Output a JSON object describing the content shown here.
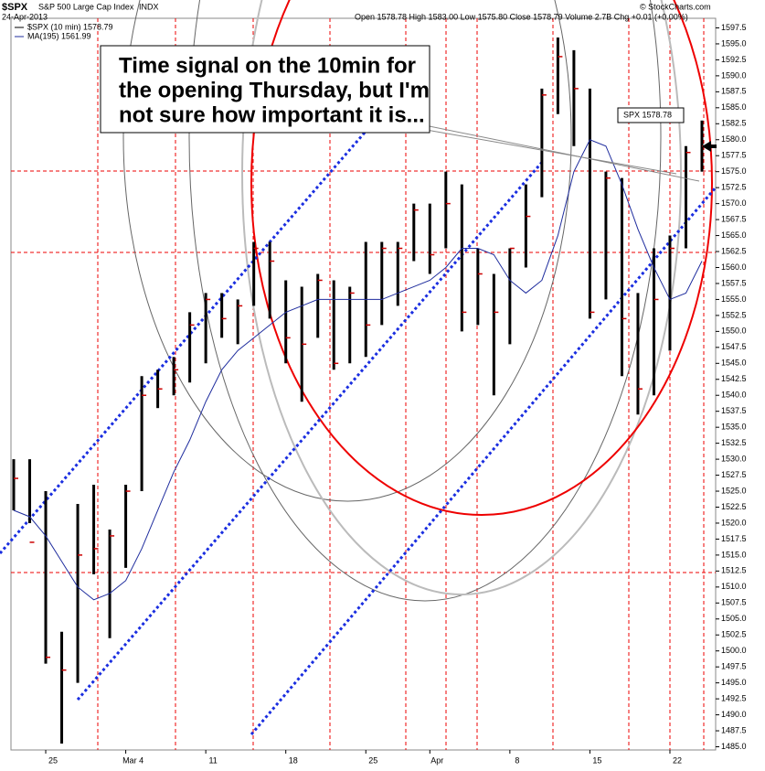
{
  "chart_data": {
    "type": "ohlc",
    "symbol": "$SPX",
    "title": "S&P 500 Large Cap Index",
    "exchange": "INDX",
    "date": "24-Apr-2013",
    "quote": "Open 1578.78 High 1583.00 Low 1575.80 Close 1578.79 Volume 2.7B Chg +0.01 (+0.00%)",
    "credit": "© StockCharts.com",
    "last_label": "SPX 1578.78",
    "annotation_lines": [
      "Time signal on the 10min for",
      "the opening Thursday, but I'm",
      "not sure how important it is..."
    ],
    "categories": [
      null,
      null,
      "25",
      null,
      null,
      null,
      null,
      "Mar 4",
      null,
      null,
      null,
      null,
      "11",
      null,
      null,
      null,
      null,
      "18",
      null,
      null,
      null,
      null,
      "25",
      null,
      null,
      null,
      "Apr",
      null,
      null,
      null,
      null,
      "8",
      null,
      null,
      null,
      null,
      "15",
      null,
      null,
      null,
      null,
      "22",
      null,
      null
    ],
    "series": [
      {
        "name": "$SPX (10 min) 1578.79",
        "color": "#000000",
        "high": [
          1530,
          1530,
          1525,
          1503,
          1523,
          1526,
          1519,
          1526,
          1543,
          1544,
          1546,
          1553,
          1556,
          1556,
          1555,
          1564,
          1564,
          1558,
          1557,
          1559,
          1558,
          1557,
          1564,
          1564,
          1564,
          1570,
          1570,
          1575,
          1573,
          1563,
          1559,
          1563,
          1573,
          1588,
          1596,
          1594,
          1588,
          1575,
          1574,
          1556,
          1563,
          1565,
          1579,
          1583
        ],
        "low": [
          1522,
          1520,
          1498,
          1485.5,
          1495,
          1512,
          1502,
          1513,
          1525,
          1538,
          1540,
          1542,
          1545,
          1549,
          1548,
          1554,
          1552,
          1545,
          1539,
          1549,
          1544,
          1545,
          1546,
          1551,
          1554,
          1561,
          1559,
          1563,
          1550,
          1551,
          1540,
          1548,
          1560,
          1571,
          1584,
          1579,
          1552,
          1555,
          1543,
          1537,
          1540,
          1547,
          1563,
          1575
        ],
        "values": [
          1527,
          1517,
          1499,
          1497,
          1515,
          1516,
          1518,
          1525,
          1540,
          1541,
          1544,
          1551,
          1555,
          1552,
          1554,
          1563,
          1561,
          1549,
          1548,
          1558,
          1545,
          1556,
          1551,
          1563,
          1563,
          1569,
          1562,
          1570,
          1553,
          1559,
          1553,
          1563,
          1568,
          1587,
          1593,
          1588,
          1553,
          1574,
          1552,
          1541,
          1555,
          1563,
          1578,
          1579
        ]
      },
      {
        "name": "MA(195) 1561.99",
        "color": "#1f2d9e",
        "values": [
          1522,
          1521,
          1518,
          1514,
          1510,
          1508,
          1509,
          1511,
          1516,
          1522,
          1528,
          1533,
          1539,
          1544,
          1547,
          1549,
          1551,
          1553,
          1554,
          1555,
          1555,
          1555,
          1555,
          1555,
          1556,
          1557,
          1558,
          1560,
          1563,
          1563,
          1562,
          1558,
          1556,
          1558,
          1565,
          1575,
          1580,
          1579,
          1573,
          1566,
          1560,
          1555,
          1556,
          1561
        ]
      }
    ],
    "ylim": [
      1484.5,
      1599
    ],
    "yticks": [
      {
        "value": 1485,
        "label": "1485.0"
      },
      1487.5,
      {
        "value": 1490,
        "label": "1490.0"
      },
      1492.5,
      {
        "value": 1495,
        "label": "1495.0"
      },
      1497.5,
      {
        "value": 1500,
        "label": "1500.0"
      },
      1502.5,
      {
        "value": 1505,
        "label": "1505.0"
      },
      1507.5,
      {
        "value": 1510,
        "label": "1510.0"
      },
      1512.5,
      {
        "value": 1515,
        "label": "1515.0"
      },
      1517.5,
      {
        "value": 1520,
        "label": "1520.0"
      },
      1522.5,
      {
        "value": 1525,
        "label": "1525.0"
      },
      1527.5,
      {
        "value": 1530,
        "label": "1530.0"
      },
      1532.5,
      {
        "value": 1535,
        "label": "1535.0"
      },
      1537.5,
      {
        "value": 1540,
        "label": "1540.0"
      },
      1542.5,
      {
        "value": 1545,
        "label": "1545.0"
      },
      1547.5,
      {
        "value": 1550,
        "label": "1550.0"
      },
      1552.5,
      {
        "value": 1555,
        "label": "1555.0"
      },
      1557.5,
      {
        "value": 1560,
        "label": "1560.0"
      },
      1562.5,
      {
        "value": 1565,
        "label": "1565.0"
      },
      1567.5,
      {
        "value": 1570,
        "label": "1570.0"
      },
      1572.5,
      {
        "value": 1575,
        "label": "1575.0"
      },
      1577.5,
      {
        "value": 1580,
        "label": "1580.0"
      },
      1582.5,
      {
        "value": 1585,
        "label": "1585.0"
      },
      1587.5,
      {
        "value": 1590,
        "label": "1590.0"
      },
      1592.5,
      {
        "value": 1595,
        "label": "1595.0"
      },
      1597.5
    ]
  }
}
